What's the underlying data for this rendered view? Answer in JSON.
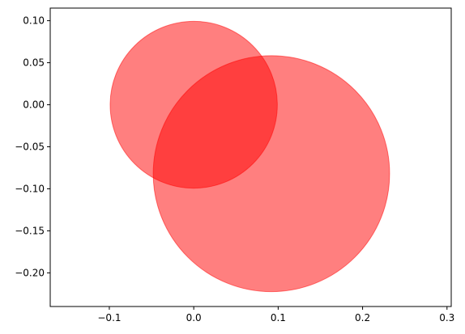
{
  "chart_data": {
    "type": "scatter",
    "title": "",
    "xlabel": "",
    "ylabel": "",
    "xlim": [
      -0.17,
      0.305
    ],
    "ylim": [
      -0.24,
      0.115
    ],
    "grid": false,
    "x_ticks": [
      {
        "value": -0.1,
        "label": "−0.1"
      },
      {
        "value": 0.0,
        "label": "0.0"
      },
      {
        "value": 0.1,
        "label": "0.1"
      },
      {
        "value": 0.2,
        "label": "0.2"
      },
      {
        "value": 0.3,
        "label": "0.3"
      }
    ],
    "y_ticks": [
      {
        "value": 0.1,
        "label": "0.10"
      },
      {
        "value": 0.05,
        "label": "0.05"
      },
      {
        "value": 0.0,
        "label": "0.00"
      },
      {
        "value": -0.05,
        "label": "−0.05"
      },
      {
        "value": -0.1,
        "label": "−0.10"
      },
      {
        "value": -0.15,
        "label": "−0.15"
      },
      {
        "value": -0.2,
        "label": "−0.20"
      }
    ],
    "circles": [
      {
        "cx": 0.0,
        "cy": 0.0,
        "r": 0.099
      },
      {
        "cx": 0.092,
        "cy": -0.082,
        "r": 0.14
      }
    ],
    "fill_color": "#ff0000",
    "fill_opacity": 0.5
  }
}
